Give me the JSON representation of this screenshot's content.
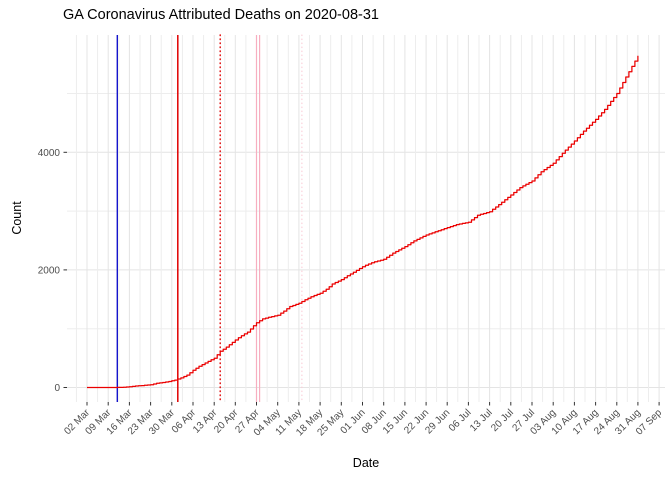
{
  "title": "GA Coronavirus Attributed Deaths on 2020-08-31",
  "colors": {
    "background": "#FFFFFF",
    "grid_major": "#E4E4E4",
    "grid_minor": "#EDEDED",
    "tick_mark": "#333333",
    "tick_label": "#4D4D4D",
    "series_red": "#EB0000",
    "vline_blue": "#1414CC",
    "vline_red": "#E00000",
    "vline_pink": "#F7AEC0",
    "vline_pink_light": "#FAC9D5"
  },
  "chart_data": {
    "type": "line",
    "title": "GA Coronavirus Attributed Deaths on 2020-08-31",
    "xlabel": "Date",
    "ylabel": "Count",
    "x_tick_labels": [
      "02 Mar",
      "09 Mar",
      "16 Mar",
      "23 Mar",
      "30 Mar",
      "06 Apr",
      "13 Apr",
      "20 Apr",
      "27 Apr",
      "04 May",
      "11 May",
      "18 May",
      "25 May",
      "01 Jun",
      "08 Jun",
      "15 Jun",
      "22 Jun",
      "29 Jun",
      "06 Jul",
      "13 Jul",
      "20 Jul",
      "27 Jul",
      "03 Aug",
      "10 Aug",
      "17 Aug",
      "24 Aug",
      "31 Aug",
      "07 Sep"
    ],
    "y_tick_labels": [
      "0",
      "2000",
      "4000"
    ],
    "y_tick_values": [
      0,
      2000,
      4000
    ],
    "ylim": [
      0,
      5900
    ],
    "x_range": [
      "2020-03-02",
      "2020-09-07"
    ],
    "grid": true,
    "legend": "none",
    "series": [
      {
        "name": "cumulative-deaths",
        "color": "#EB0000",
        "points": [
          [
            "2020-03-02",
            0
          ],
          [
            "2020-03-10",
            0
          ],
          [
            "2020-03-12",
            1
          ],
          [
            "2020-03-14",
            3
          ],
          [
            "2020-03-16",
            14
          ],
          [
            "2020-03-18",
            25
          ],
          [
            "2020-03-20",
            32
          ],
          [
            "2020-03-23",
            48
          ],
          [
            "2020-03-25",
            71
          ],
          [
            "2020-03-27",
            85
          ],
          [
            "2020-03-29",
            102
          ],
          [
            "2020-03-31",
            125
          ],
          [
            "2020-04-02",
            163
          ],
          [
            "2020-04-04",
            211
          ],
          [
            "2020-04-06",
            294
          ],
          [
            "2020-04-08",
            362
          ],
          [
            "2020-04-10",
            416
          ],
          [
            "2020-04-13",
            499
          ],
          [
            "2020-04-15",
            617
          ],
          [
            "2020-04-17",
            687
          ],
          [
            "2020-04-20",
            808
          ],
          [
            "2020-04-22",
            881
          ],
          [
            "2020-04-24",
            942
          ],
          [
            "2020-04-27",
            1102
          ],
          [
            "2020-04-29",
            1167
          ],
          [
            "2020-05-01",
            1195
          ],
          [
            "2020-05-04",
            1229
          ],
          [
            "2020-05-06",
            1300
          ],
          [
            "2020-05-08",
            1377
          ],
          [
            "2020-05-11",
            1432
          ],
          [
            "2020-05-13",
            1492
          ],
          [
            "2020-05-15",
            1545
          ],
          [
            "2020-05-18",
            1602
          ],
          [
            "2020-05-20",
            1670
          ],
          [
            "2020-05-22",
            1760
          ],
          [
            "2020-05-25",
            1835
          ],
          [
            "2020-05-27",
            1900
          ],
          [
            "2020-05-29",
            1960
          ],
          [
            "2020-06-01",
            2055
          ],
          [
            "2020-06-04",
            2123
          ],
          [
            "2020-06-08",
            2180
          ],
          [
            "2020-06-11",
            2285
          ],
          [
            "2020-06-15",
            2396
          ],
          [
            "2020-06-18",
            2494
          ],
          [
            "2020-06-22",
            2594
          ],
          [
            "2020-06-25",
            2648
          ],
          [
            "2020-06-29",
            2720
          ],
          [
            "2020-07-02",
            2770
          ],
          [
            "2020-07-06",
            2810
          ],
          [
            "2020-07-09",
            2930
          ],
          [
            "2020-07-13",
            2990
          ],
          [
            "2020-07-16",
            3110
          ],
          [
            "2020-07-20",
            3274
          ],
          [
            "2020-07-23",
            3400
          ],
          [
            "2020-07-27",
            3512
          ],
          [
            "2020-07-30",
            3670
          ],
          [
            "2020-08-03",
            3813
          ],
          [
            "2020-08-06",
            3985
          ],
          [
            "2020-08-10",
            4192
          ],
          [
            "2020-08-13",
            4360
          ],
          [
            "2020-08-17",
            4560
          ],
          [
            "2020-08-20",
            4730
          ],
          [
            "2020-08-24",
            5000
          ],
          [
            "2020-08-27",
            5280
          ],
          [
            "2020-08-31",
            5642
          ]
        ]
      }
    ],
    "vlines": [
      {
        "date": "2020-03-12",
        "color": "#1414CC",
        "style": "solid",
        "width": 1.4
      },
      {
        "date": "2020-04-01",
        "color": "#E00000",
        "style": "solid",
        "width": 1.5
      },
      {
        "date": "2020-04-15",
        "color": "#E00000",
        "style": "dotted",
        "width": 1.4
      },
      {
        "date": "2020-04-27",
        "color": "#F7AEC0",
        "style": "solid",
        "width": 1.2
      },
      {
        "date": "2020-04-28",
        "color": "#F7AEC0",
        "style": "solid",
        "width": 1.2
      },
      {
        "date": "2020-05-12",
        "color": "#FAC9D5",
        "style": "dotted",
        "width": 1.1
      }
    ]
  }
}
